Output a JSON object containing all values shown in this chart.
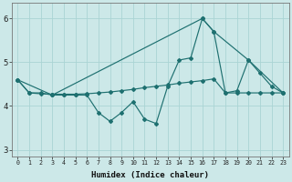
{
  "xlabel": "Humidex (Indice chaleur)",
  "background_color": "#cce8e8",
  "line_color": "#1e7070",
  "grid_color": "#aad4d4",
  "xlim": [
    -0.5,
    23.5
  ],
  "ylim": [
    2.85,
    6.35
  ],
  "yticks": [
    3,
    4,
    5,
    6
  ],
  "xticks": [
    0,
    1,
    2,
    3,
    4,
    5,
    6,
    7,
    8,
    9,
    10,
    11,
    12,
    13,
    14,
    15,
    16,
    17,
    18,
    19,
    20,
    21,
    22,
    23
  ],
  "series": [
    {
      "x": [
        0,
        1,
        2,
        3,
        4,
        5,
        6,
        7,
        8,
        9,
        10,
        11,
        12,
        13,
        14,
        15,
        16,
        17,
        18,
        19,
        20,
        21,
        22,
        23
      ],
      "y": [
        4.6,
        4.3,
        4.3,
        4.25,
        4.25,
        4.25,
        4.25,
        3.85,
        3.65,
        3.85,
        4.1,
        3.7,
        3.6,
        4.45,
        5.05,
        5.1,
        6.0,
        5.7,
        4.3,
        4.35,
        5.05,
        4.75,
        4.45,
        4.3
      ]
    },
    {
      "x": [
        0,
        1,
        2,
        3,
        4,
        5,
        6,
        7,
        8,
        9,
        10,
        11,
        12,
        13,
        14,
        15,
        16,
        17,
        18,
        19,
        20,
        21,
        22,
        23
      ],
      "y": [
        4.6,
        4.3,
        4.28,
        4.27,
        4.27,
        4.27,
        4.28,
        4.3,
        4.32,
        4.35,
        4.38,
        4.42,
        4.45,
        4.48,
        4.52,
        4.55,
        4.58,
        4.62,
        4.3,
        4.3,
        4.3,
        4.3,
        4.3,
        4.3
      ]
    },
    {
      "x": [
        0,
        3,
        16,
        17,
        20,
        23
      ],
      "y": [
        4.6,
        4.25,
        6.0,
        5.7,
        5.05,
        4.3
      ]
    }
  ]
}
